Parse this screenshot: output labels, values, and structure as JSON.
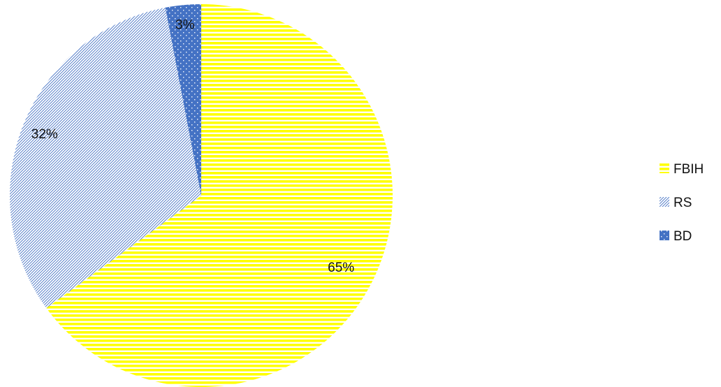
{
  "chart_data": {
    "type": "pie",
    "categories": [
      "FBIH",
      "RS",
      "BD"
    ],
    "values": [
      65,
      32,
      3
    ],
    "data_labels": [
      "65%",
      "32%",
      "3%"
    ],
    "units": "percent",
    "legend_position": "right",
    "start_angle_deg": 0,
    "direction": "clockwise",
    "slice_patterns": [
      "horizontal-lines",
      "diagonal-hatch",
      "dots"
    ],
    "colors": {
      "FBIH": "#FFFF00",
      "RS": "#4472C4",
      "BD": "#4472C4"
    }
  }
}
